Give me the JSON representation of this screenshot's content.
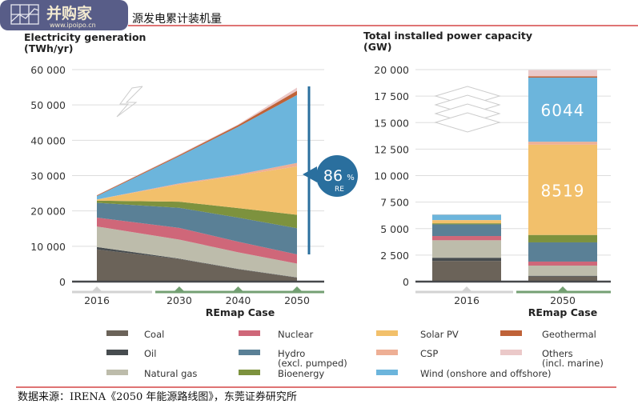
{
  "page": {
    "title": "源发电累计装机量",
    "source": "数据来源：IRENA《2050 年能源路线图》，东莞证券研究所",
    "watermark": {
      "text": "并购家",
      "url": "www.ipoipo.cn"
    }
  },
  "colors": {
    "Coal": "#6b6359",
    "Oil": "#474c4f",
    "Natural gas": "#bdbcab",
    "Nuclear": "#cf6779",
    "Hydro (excl. pumped)": "#5a8096",
    "Bioenergy": "#7d923e",
    "Solar PV": "#f2c06b",
    "CSP": "#eeaf95",
    "Wind (onshore and offshore)": "#6cb5dc",
    "Geothermal": "#bf6238",
    "Others (incl. marine)": "#ebc9c9",
    "re_bar": "#2a6f9e",
    "grid": "#dddddd",
    "axis": "#46484b",
    "timeline_past": "#d3d3d3",
    "timeline_remap": "#74a073",
    "rule": "#cc2222"
  },
  "legend": [
    {
      "label": "Coal"
    },
    {
      "label": "Oil"
    },
    {
      "label": "Natural gas"
    },
    {
      "label": "Nuclear"
    },
    {
      "label": "Hydro",
      "label2": "(excl. pumped)"
    },
    {
      "label": "Bioenergy"
    },
    {
      "label": "Solar PV"
    },
    {
      "label": "CSP"
    },
    {
      "label": "Wind (onshore and offshore)"
    },
    {
      "label": "Geothermal"
    },
    {
      "label": "Others",
      "label2": "(incl. marine)"
    }
  ],
  "chart_data": [
    {
      "type": "area",
      "stacked": true,
      "title": "Electricity generation",
      "unit": "(TWh/yr)",
      "x": [
        2016,
        2030,
        2040,
        2050
      ],
      "x_tick_labels": [
        "2016",
        "2030",
        "2040",
        "2050"
      ],
      "x_group_label": "REmap Case",
      "ylim": [
        0,
        60000
      ],
      "y_ticks": [
        0,
        10000,
        20000,
        30000,
        40000,
        50000,
        60000
      ],
      "y_tick_labels": [
        "0",
        "10 000",
        "20 000",
        "30 000",
        "40 000",
        "50 000",
        "60 000"
      ],
      "grid": true,
      "annotation": {
        "value": "86",
        "unit": "%",
        "label": "RE"
      },
      "series": [
        {
          "name": "Coal",
          "values": [
            9100,
            6400,
            3500,
            1100
          ]
        },
        {
          "name": "Oil",
          "values": [
            700,
            100,
            100,
            100
          ]
        },
        {
          "name": "Natural gas",
          "values": [
            5800,
            5400,
            4700,
            3900
          ]
        },
        {
          "name": "Nuclear",
          "values": [
            2500,
            3300,
            3000,
            2600
          ]
        },
        {
          "name": "Hydro (excl. pumped)",
          "values": [
            4200,
            5700,
            6800,
            7400
          ]
        },
        {
          "name": "Bioenergy",
          "values": [
            600,
            1700,
            2700,
            3800
          ]
        },
        {
          "name": "Solar PV",
          "values": [
            300,
            4900,
            9200,
            13700
          ]
        },
        {
          "name": "CSP",
          "values": [
            50,
            300,
            300,
            1000
          ]
        },
        {
          "name": "Wind (onshore and offshore)",
          "values": [
            950,
            7700,
            13500,
            19200
          ]
        },
        {
          "name": "Geothermal",
          "values": [
            200,
            300,
            500,
            1200
          ]
        },
        {
          "name": "Others (incl. marine)",
          "values": [
            100,
            200,
            200,
            900
          ]
        }
      ]
    },
    {
      "type": "bar",
      "stacked": true,
      "title": "Total installed power capacity",
      "unit": "(GW)",
      "categories": [
        "2016",
        "2050"
      ],
      "x_group_label": "REmap Case",
      "ylim": [
        0,
        20000
      ],
      "y_ticks": [
        0,
        2500,
        5000,
        7500,
        10000,
        12500,
        15000,
        17500,
        20000
      ],
      "y_tick_labels": [
        "0",
        "2 500",
        "5 000",
        "7 500",
        "10 000",
        "12 500",
        "15 000",
        "17 500",
        "20 000"
      ],
      "grid": true,
      "data_labels": [
        {
          "series": "Solar PV",
          "category": "2050",
          "text": "8519"
        },
        {
          "series": "Wind (onshore and offshore)",
          "category": "2050",
          "text": "6044"
        }
      ],
      "series": [
        {
          "name": "Coal",
          "values": [
            1950,
            480
          ]
        },
        {
          "name": "Oil",
          "values": [
            300,
            70
          ]
        },
        {
          "name": "Natural gas",
          "values": [
            1650,
            960
          ]
        },
        {
          "name": "Nuclear",
          "values": [
            400,
            380
          ]
        },
        {
          "name": "Hydro (excl. pumped)",
          "values": [
            1100,
            1810
          ]
        },
        {
          "name": "Bioenergy",
          "values": [
            100,
            700
          ]
        },
        {
          "name": "Solar PV",
          "values": [
            300,
            8519
          ]
        },
        {
          "name": "CSP",
          "values": [
            10,
            280
          ]
        },
        {
          "name": "Wind (onshore and offshore)",
          "values": [
            500,
            6044
          ]
        },
        {
          "name": "Geothermal",
          "values": [
            10,
            130
          ]
        },
        {
          "name": "Others (incl. marine)",
          "values": [
            0,
            580
          ]
        }
      ]
    }
  ]
}
